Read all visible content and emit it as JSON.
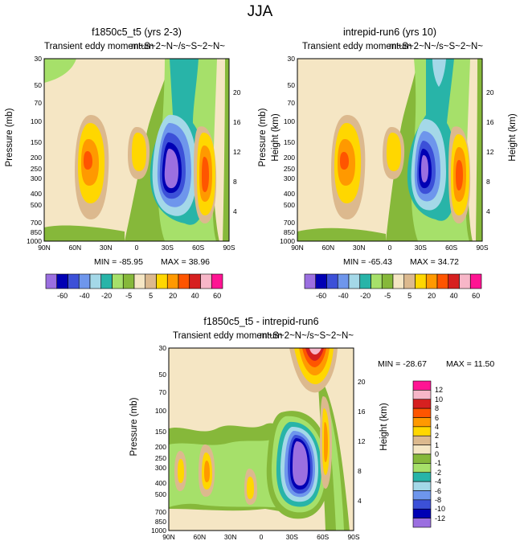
{
  "title": "JJA",
  "colors": [
    "#9b6fe0",
    "#0000b4",
    "#3c50d8",
    "#6e96ec",
    "#a4d8e8",
    "#28b4a8",
    "#a6e06a",
    "#86b83a",
    "#f5e6c4",
    "#dcb98e",
    "#ffd700",
    "#ff9900",
    "#ff5500",
    "#d62020",
    "#f7b6c8",
    "#ff1493"
  ],
  "chart_data": [
    {
      "type": "heatmap",
      "title": "f1850c5_t5 (yrs 2-3)",
      "subtitle": "Transient eddy momentum",
      "units": "m~S~2~N~/s~S~2~N~",
      "xlabel": "",
      "ylabel": "Pressure (mb)",
      "y2label": "Height (km)",
      "x_ticks": [
        "90N",
        "60N",
        "30N",
        "0",
        "30S",
        "60S",
        "90S"
      ],
      "y_ticks": [
        "30",
        "50",
        "70",
        "100",
        "150",
        "200",
        "250",
        "300",
        "400",
        "500",
        "700",
        "850",
        "1000"
      ],
      "y2_ticks": [
        "20",
        "16",
        "12",
        "8",
        "4"
      ],
      "min": -85.95,
      "max": 38.96,
      "min_text": "MIN = -85.95",
      "max_text": "MAX = 38.96",
      "contour_levels": [
        "-60",
        "-40",
        "-20",
        "-5",
        "5",
        "20",
        "40",
        "60"
      ]
    },
    {
      "type": "heatmap",
      "title": "intrepid-run6 (yrs 10)",
      "subtitle": "Transient eddy momentum",
      "units": "m~S~2~N~/s~S~2~N~",
      "xlabel": "",
      "ylabel": "Pressure (mb)",
      "y2label": "Height (km)",
      "x_ticks": [
        "90N",
        "60N",
        "30N",
        "0",
        "30S",
        "60S",
        "90S"
      ],
      "y_ticks": [
        "30",
        "50",
        "70",
        "100",
        "150",
        "200",
        "250",
        "300",
        "400",
        "500",
        "700",
        "850",
        "1000"
      ],
      "y2_ticks": [
        "20",
        "16",
        "12",
        "8",
        "4"
      ],
      "min": -65.43,
      "max": 34.72,
      "min_text": "MIN = -65.43",
      "max_text": "MAX = 34.72",
      "contour_levels": [
        "-60",
        "-40",
        "-20",
        "-5",
        "5",
        "20",
        "40",
        "60"
      ]
    },
    {
      "type": "heatmap",
      "title": "f1850c5_t5 - intrepid-run6",
      "subtitle": "Transient eddy momentum",
      "units": "m~S~2~N~/s~S~2~N~",
      "xlabel": "",
      "ylabel": "Pressure (mb)",
      "y2label": "Height (km)",
      "x_ticks": [
        "90N",
        "60N",
        "30N",
        "0",
        "30S",
        "60S",
        "90S"
      ],
      "y_ticks": [
        "30",
        "50",
        "70",
        "100",
        "150",
        "200",
        "250",
        "300",
        "400",
        "500",
        "700",
        "850",
        "1000"
      ],
      "y2_ticks": [
        "20",
        "16",
        "12",
        "8",
        "4"
      ],
      "min": -28.67,
      "max": 11.5,
      "min_text": "MIN = -28.67",
      "max_text": "MAX = 11.50",
      "contour_levels": [
        "12",
        "10",
        "8",
        "6",
        "4",
        "2",
        "1",
        "0",
        "-1",
        "-2",
        "-4",
        "-6",
        "-8",
        "-10",
        "-12"
      ]
    }
  ]
}
